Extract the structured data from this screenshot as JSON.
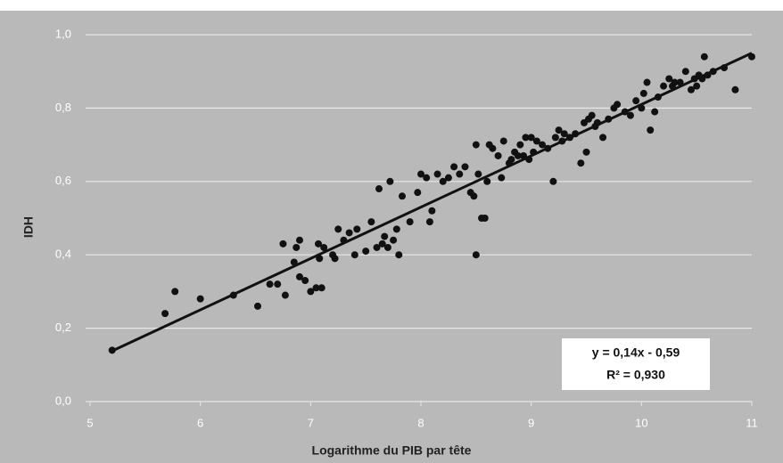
{
  "chart_data": {
    "type": "scatter",
    "x_label": "Logarithme du PIB par tête",
    "y_label": "IDH",
    "xlim": [
      5,
      11
    ],
    "xticks": [
      5,
      6,
      7,
      8,
      9,
      10,
      11
    ],
    "ylim": [
      0,
      1
    ],
    "yticks": [
      {
        "value": 0,
        "label": "0,0"
      },
      {
        "value": 0.2,
        "label": "0,2"
      },
      {
        "value": 0.4,
        "label": "0,4"
      },
      {
        "value": 0.6,
        "label": "0,6"
      },
      {
        "value": 0.8,
        "label": "0,8"
      },
      {
        "value": 1,
        "label": "1,0"
      }
    ],
    "grid": true,
    "color": "#111111",
    "series": [
      {
        "name": "IDH",
        "x": [
          5.2,
          5.68,
          5.77,
          6.0,
          6.3,
          6.52,
          6.63,
          6.7,
          6.75,
          6.77,
          6.85,
          6.87,
          6.9,
          6.9,
          6.95,
          7.0,
          7.05,
          7.07,
          7.08,
          7.1,
          7.12,
          7.2,
          7.22,
          7.25,
          7.3,
          7.35,
          7.4,
          7.42,
          7.5,
          7.55,
          7.6,
          7.62,
          7.65,
          7.67,
          7.7,
          7.72,
          7.75,
          7.78,
          7.8,
          7.83,
          7.9,
          7.97,
          8.0,
          8.05,
          8.08,
          8.1,
          8.15,
          8.2,
          8.25,
          8.3,
          8.35,
          8.4,
          8.45,
          8.48,
          8.5,
          8.5,
          8.52,
          8.55,
          8.58,
          8.6,
          8.62,
          8.65,
          8.7,
          8.73,
          8.75,
          8.8,
          8.82,
          8.85,
          8.88,
          8.9,
          8.93,
          8.95,
          8.98,
          9.0,
          9.02,
          9.05,
          9.1,
          9.15,
          9.2,
          9.22,
          9.25,
          9.28,
          9.3,
          9.35,
          9.4,
          9.45,
          9.48,
          9.5,
          9.52,
          9.55,
          9.58,
          9.6,
          9.65,
          9.7,
          9.75,
          9.78,
          9.85,
          9.9,
          9.95,
          10.0,
          10.02,
          10.05,
          10.08,
          10.12,
          10.15,
          10.2,
          10.25,
          10.28,
          10.3,
          10.35,
          10.4,
          10.45,
          10.48,
          10.5,
          10.52,
          10.55,
          10.57,
          10.6,
          10.65,
          10.75,
          10.85,
          11.0
        ],
        "values": [
          0.14,
          0.24,
          0.3,
          0.28,
          0.29,
          0.26,
          0.32,
          0.32,
          0.43,
          0.29,
          0.38,
          0.42,
          0.44,
          0.34,
          0.33,
          0.3,
          0.31,
          0.43,
          0.39,
          0.31,
          0.42,
          0.4,
          0.39,
          0.47,
          0.44,
          0.46,
          0.4,
          0.47,
          0.41,
          0.49,
          0.42,
          0.58,
          0.43,
          0.45,
          0.42,
          0.6,
          0.44,
          0.47,
          0.4,
          0.56,
          0.49,
          0.57,
          0.62,
          0.61,
          0.49,
          0.52,
          0.62,
          0.6,
          0.61,
          0.64,
          0.62,
          0.64,
          0.57,
          0.56,
          0.7,
          0.4,
          0.62,
          0.5,
          0.5,
          0.6,
          0.7,
          0.69,
          0.67,
          0.61,
          0.71,
          0.65,
          0.66,
          0.68,
          0.67,
          0.7,
          0.67,
          0.72,
          0.66,
          0.72,
          0.68,
          0.71,
          0.7,
          0.69,
          0.6,
          0.72,
          0.74,
          0.71,
          0.73,
          0.72,
          0.73,
          0.65,
          0.76,
          0.68,
          0.77,
          0.78,
          0.75,
          0.76,
          0.72,
          0.77,
          0.8,
          0.81,
          0.79,
          0.78,
          0.82,
          0.8,
          0.84,
          0.87,
          0.74,
          0.79,
          0.83,
          0.86,
          0.88,
          0.86,
          0.87,
          0.87,
          0.9,
          0.85,
          0.88,
          0.86,
          0.89,
          0.88,
          0.94,
          0.89,
          0.9,
          0.91,
          0.85,
          0.94
        ]
      }
    ],
    "trendline": {
      "slope": 0.14,
      "intercept": -0.59,
      "x_range": [
        5.2,
        11
      ],
      "equation": "y = 0,14x - 0,59",
      "r2": "R² = 0,930"
    }
  }
}
